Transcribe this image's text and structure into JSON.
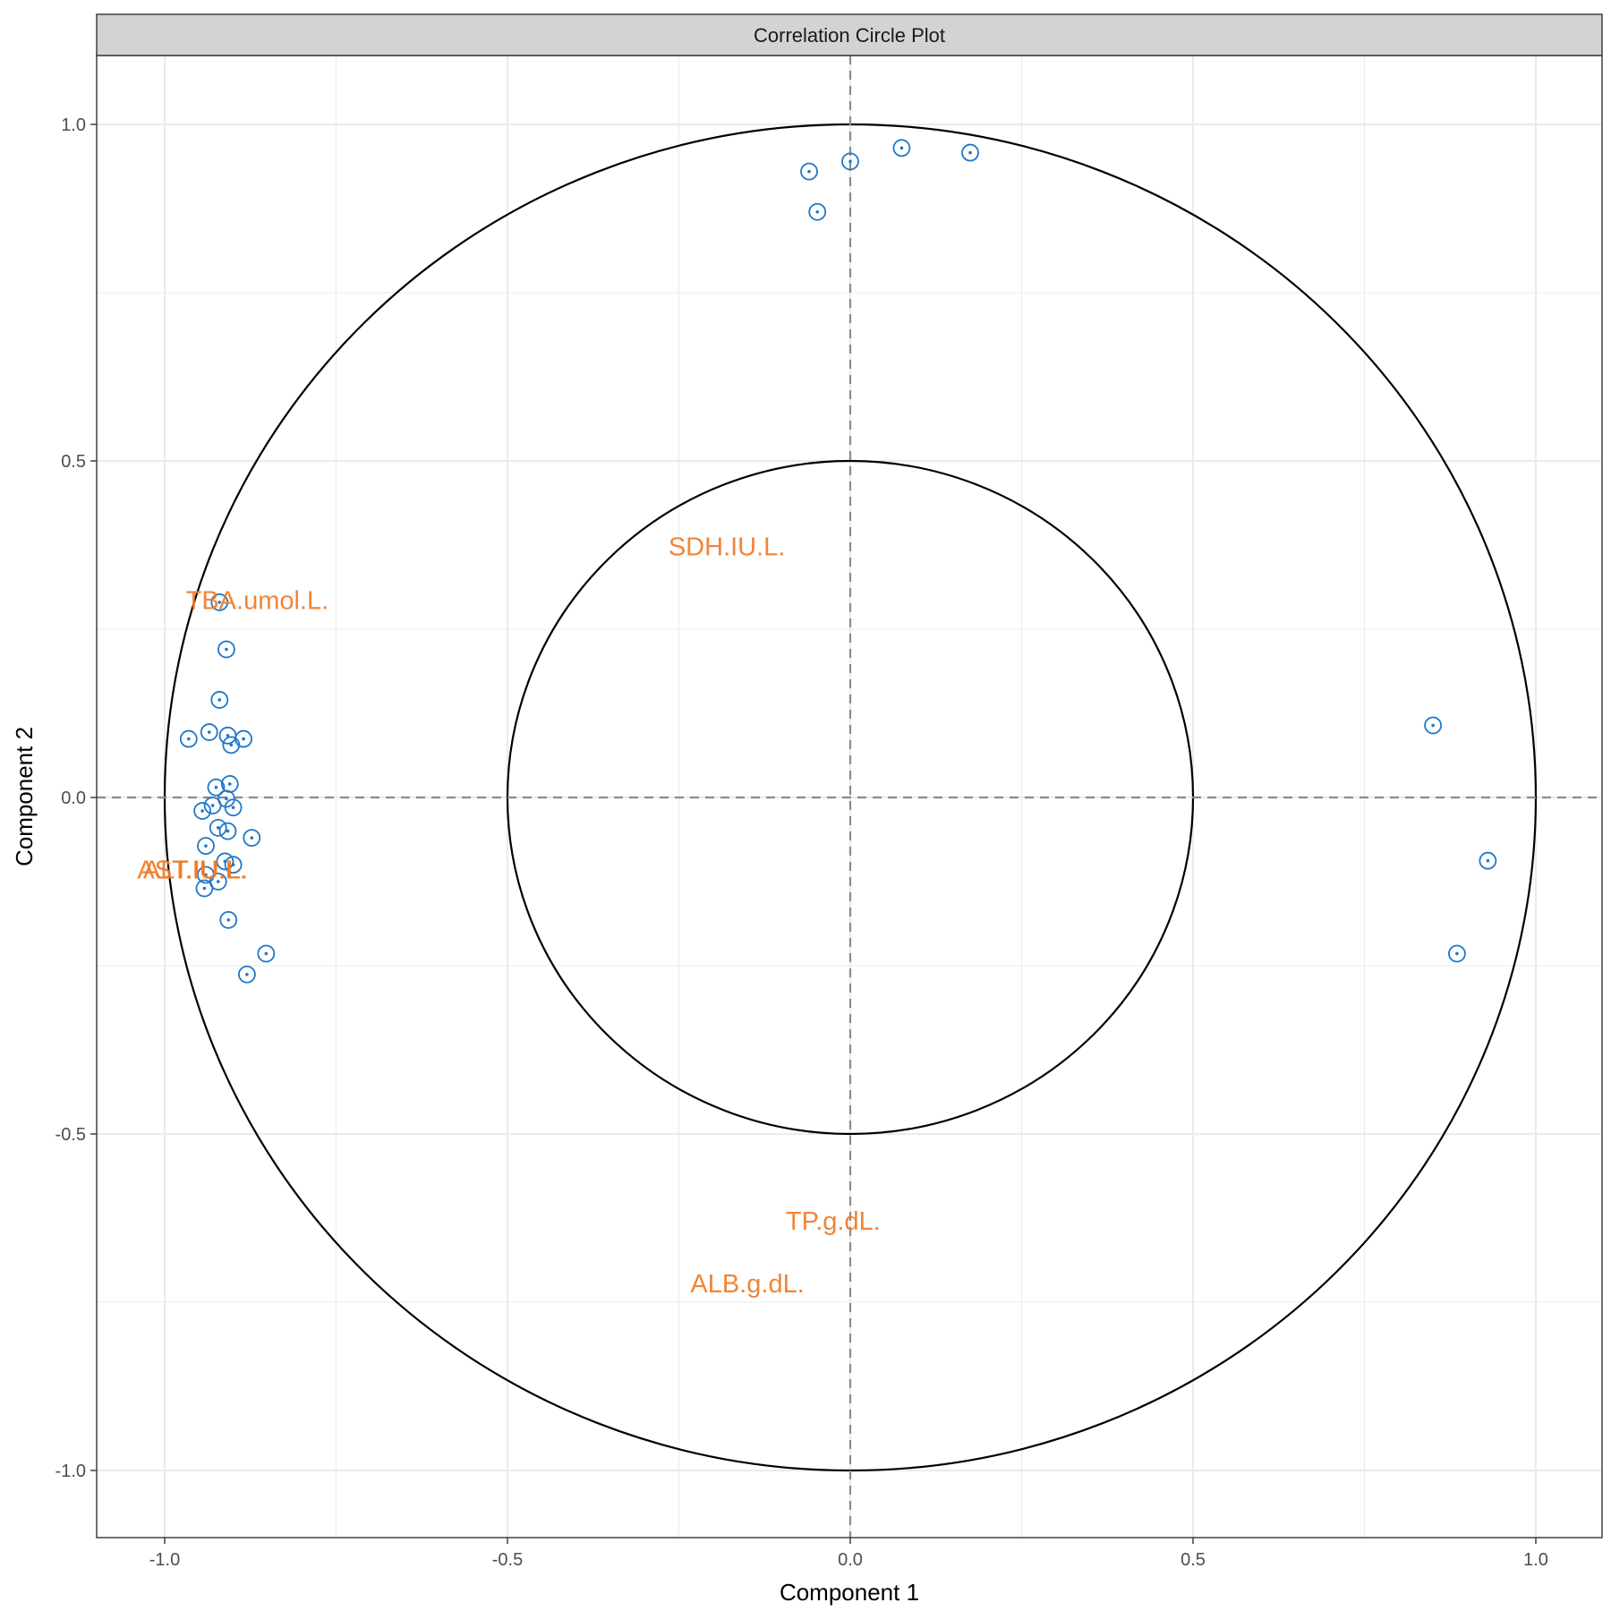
{
  "chart_data": {
    "type": "scatter",
    "title": "Correlation Circle Plot",
    "xlabel": "Component  1",
    "ylabel": "Component  2",
    "xlim": [
      -1.1,
      1.0
    ],
    "ylim": [
      -1.1,
      1.0
    ],
    "x_ticks": [
      {
        "value": -1.0,
        "label": "-1.0"
      },
      {
        "value": -0.5,
        "label": "-0.5"
      },
      {
        "value": 0.0,
        "label": "0.0"
      },
      {
        "value": 0.5,
        "label": "0.5"
      },
      {
        "value": 1.0,
        "label": "1.0"
      }
    ],
    "y_ticks": [
      {
        "value": 1.0,
        "label": "1.0"
      },
      {
        "value": 0.5,
        "label": "0.5"
      },
      {
        "value": 0.0,
        "label": "0.0"
      },
      {
        "value": -0.5,
        "label": "-0.5"
      },
      {
        "value": -1.0,
        "label": "-1.0"
      }
    ],
    "grid": true,
    "circles": [
      1.0,
      0.5
    ],
    "reference_lines": {
      "x": 0,
      "y": 0,
      "style": "dashed"
    },
    "colors": {
      "points": "#1f77c9",
      "labels": "#f07a25",
      "strip": "#d3d3d3",
      "grid": "#ebebeb"
    },
    "points": [
      {
        "x": -0.06,
        "y": 0.93
      },
      {
        "x": 0.0,
        "y": 0.945
      },
      {
        "x": 0.075,
        "y": 0.965
      },
      {
        "x": 0.175,
        "y": 0.958
      },
      {
        "x": -0.048,
        "y": 0.87
      },
      {
        "x": -0.92,
        "y": 0.29
      },
      {
        "x": -0.91,
        "y": 0.22
      },
      {
        "x": -0.92,
        "y": 0.145
      },
      {
        "x": -0.965,
        "y": 0.087
      },
      {
        "x": -0.935,
        "y": 0.097
      },
      {
        "x": -0.908,
        "y": 0.092
      },
      {
        "x": -0.885,
        "y": 0.087
      },
      {
        "x": -0.903,
        "y": 0.078
      },
      {
        "x": -0.905,
        "y": 0.02
      },
      {
        "x": -0.925,
        "y": 0.015
      },
      {
        "x": -0.91,
        "y": -0.002
      },
      {
        "x": -0.93,
        "y": -0.012
      },
      {
        "x": -0.9,
        "y": -0.015
      },
      {
        "x": -0.945,
        "y": -0.02
      },
      {
        "x": -0.922,
        "y": -0.045
      },
      {
        "x": -0.908,
        "y": -0.05
      },
      {
        "x": -0.873,
        "y": -0.06
      },
      {
        "x": -0.94,
        "y": -0.072
      },
      {
        "x": -0.912,
        "y": -0.095
      },
      {
        "x": -0.9,
        "y": -0.1
      },
      {
        "x": -0.94,
        "y": -0.115
      },
      {
        "x": -0.922,
        "y": -0.125
      },
      {
        "x": -0.942,
        "y": -0.135
      },
      {
        "x": -0.907,
        "y": -0.182
      },
      {
        "x": -0.852,
        "y": -0.232
      },
      {
        "x": -0.88,
        "y": -0.263
      },
      {
        "x": 0.85,
        "y": 0.107
      },
      {
        "x": 0.93,
        "y": -0.094
      },
      {
        "x": 0.885,
        "y": -0.232
      }
    ],
    "variables": [
      {
        "name": "SDH.IU.L.",
        "x": -0.18,
        "y": 0.37
      },
      {
        "name": "TBA.umol.L.",
        "x": -0.865,
        "y": 0.29
      },
      {
        "name": "AST.IU.L.",
        "x": -0.96,
        "y": -0.11
      },
      {
        "name": "ALT.IU.L.",
        "x": -0.955,
        "y": -0.11
      },
      {
        "name": "TP.g.dL.",
        "x": -0.025,
        "y": -0.632
      },
      {
        "name": "ALB.g.dL.",
        "x": -0.15,
        "y": -0.725
      }
    ]
  }
}
